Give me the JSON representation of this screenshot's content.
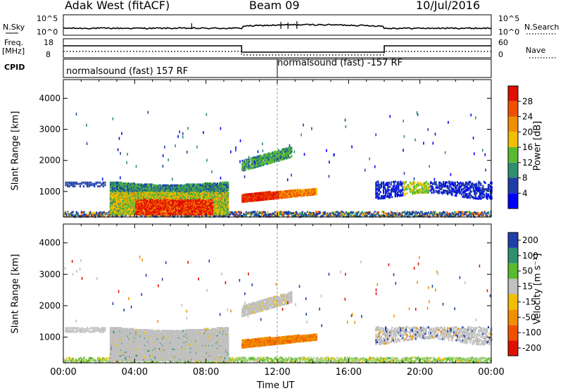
{
  "header": {
    "title": "Adak West (fitACF)",
    "beam": "Beam 09",
    "date": "10/Jul/2016"
  },
  "panels": {
    "nsky_label": "N.Sky",
    "nsky_ticks": [
      "10^5",
      "10^0"
    ],
    "nsearch_label": "N.Search",
    "freq_label_1": "Freq.",
    "freq_label_2": "[MHz]",
    "freq_ticks": [
      "18",
      "8"
    ],
    "nave_label": "Nave",
    "nave_ticks": [
      "60",
      "0"
    ],
    "cpid_label": "CPID",
    "cpid_1": "normalsound (fast) 157 RF",
    "cpid_2": "normalsound (fast) -157 RF"
  },
  "chart_data": [
    {
      "type": "heatmap",
      "name": "power",
      "ylabel": "Slant Range [km]",
      "yticks": [
        1000,
        2000,
        3000,
        4000
      ],
      "ylim": [
        180,
        4600
      ],
      "colorbar_label": "Power [dB]",
      "colorbar_ticks": [
        4,
        8,
        12,
        16,
        20,
        24,
        28
      ],
      "colorbar_range": [
        0,
        32
      ],
      "colors": [
        "#0000ff",
        "#1f3fa8",
        "#2f8f6f",
        "#58bb2f",
        "#f0c000",
        "#f09000",
        "#f05000",
        "#e01000"
      ],
      "regions": [
        {
          "t0": 2.6,
          "t1": 9.2,
          "r0": 300,
          "r1": 1350,
          "level": "mixed-high"
        },
        {
          "t0": 10.0,
          "t1": 14.2,
          "r0": 700,
          "r1": 1100,
          "level": "high"
        },
        {
          "t0": 10.0,
          "t1": 12.8,
          "r0": 1700,
          "r1": 2500,
          "level": "medium"
        },
        {
          "t0": 17.5,
          "t1": 24.0,
          "r0": 900,
          "r1": 1350,
          "level": "low"
        }
      ]
    },
    {
      "type": "heatmap",
      "name": "velocity",
      "ylabel": "Slant Range [km]",
      "yticks": [
        1000,
        2000,
        3000,
        4000
      ],
      "ylim": [
        180,
        4600
      ],
      "colorbar_label": "Velocity [m s⁻¹]",
      "colorbar_ticks": [
        "200",
        "100",
        "50",
        "15",
        "-15",
        "-50",
        "-100",
        "-200"
      ],
      "colors": [
        "#1f3fa8",
        "#2f8f6f",
        "#58bb2f",
        "#c0c0c0",
        "#f0c000",
        "#f09000",
        "#f05000",
        "#e01000"
      ],
      "regions": [
        {
          "t0": 2.6,
          "t1": 9.2,
          "r0": 300,
          "r1": 1350,
          "level": "near-zero"
        },
        {
          "t0": 10.0,
          "t1": 14.2,
          "r0": 700,
          "r1": 1100,
          "level": "-50"
        },
        {
          "t0": 10.0,
          "t1": 12.8,
          "r0": 1700,
          "r1": 2500,
          "level": "near-zero"
        },
        {
          "t0": 17.5,
          "t1": 24.0,
          "r0": 900,
          "r1": 1350,
          "level": "near-zero"
        }
      ]
    }
  ],
  "xaxis": {
    "ticks": [
      "00:00",
      "04:00",
      "08:00",
      "12:00",
      "16:00",
      "20:00",
      "00:00"
    ],
    "label": "Time UT"
  }
}
